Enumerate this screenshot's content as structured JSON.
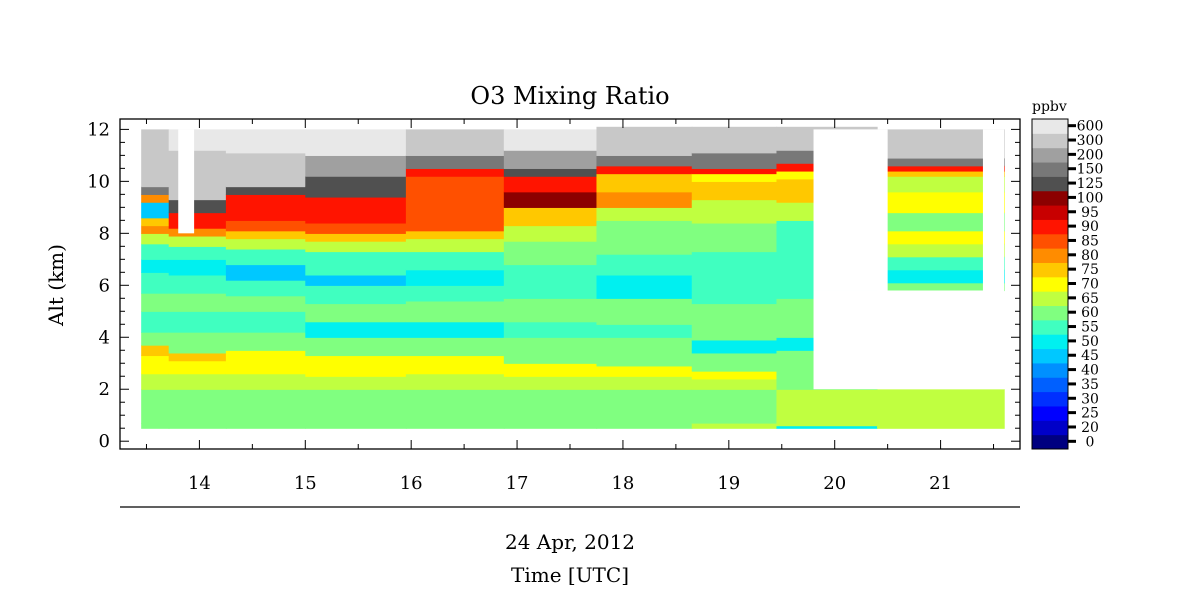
{
  "chart_data": {
    "type": "heatmap",
    "title": "O3 Mixing Ratio",
    "ylabel": "Alt (km)",
    "date_label": "24 Apr, 2012",
    "xlabel": "Time [UTC]",
    "xlim": [
      13.25,
      21.75
    ],
    "ylim": [
      -0.3,
      12.4
    ],
    "x_ticks": [
      14,
      15,
      16,
      17,
      18,
      19,
      20,
      21
    ],
    "y_ticks": [
      0,
      2,
      4,
      6,
      8,
      10,
      12
    ],
    "colorbar": {
      "unit": "ppbv",
      "levels": [
        0,
        20,
        25,
        30,
        35,
        40,
        45,
        50,
        55,
        60,
        65,
        70,
        75,
        80,
        85,
        90,
        95,
        100,
        125,
        150,
        200,
        300,
        600
      ],
      "colors": [
        "#000080",
        "#0000c8",
        "#0000ff",
        "#0030ff",
        "#0060ff",
        "#0090ff",
        "#00c8ff",
        "#00f0f0",
        "#40ffc0",
        "#80ff80",
        "#c0ff40",
        "#ffff00",
        "#ffc800",
        "#ff8c00",
        "#ff5000",
        "#ff1400",
        "#c80000",
        "#8c0000",
        "#505050",
        "#787878",
        "#a0a0a0",
        "#c8c8c8",
        "#e8e8e8"
      ]
    },
    "profiles": [
      {
        "time": 13.47,
        "levels": [
          [
            0.5,
            0.7,
            60
          ],
          [
            0.7,
            2.0,
            60
          ],
          [
            2.0,
            2.6,
            65
          ],
          [
            2.6,
            3.3,
            70
          ],
          [
            3.3,
            3.7,
            75
          ],
          [
            3.7,
            4.2,
            60
          ],
          [
            4.2,
            5.0,
            55
          ],
          [
            5.0,
            5.7,
            60
          ],
          [
            5.7,
            6.5,
            55
          ],
          [
            6.5,
            7.0,
            50
          ],
          [
            7.0,
            7.6,
            55
          ],
          [
            7.6,
            8.0,
            65
          ],
          [
            8.0,
            8.3,
            80
          ],
          [
            8.3,
            8.6,
            75
          ],
          [
            8.6,
            9.2,
            45
          ],
          [
            9.2,
            9.5,
            80
          ],
          [
            9.5,
            9.8,
            150
          ],
          [
            9.8,
            12.0,
            300
          ]
        ]
      },
      {
        "time": 13.95,
        "levels": [
          [
            0.5,
            2.0,
            60
          ],
          [
            2.0,
            2.6,
            65
          ],
          [
            2.6,
            3.1,
            70
          ],
          [
            3.1,
            3.4,
            75
          ],
          [
            3.4,
            4.2,
            60
          ],
          [
            4.2,
            5.0,
            55
          ],
          [
            5.0,
            5.7,
            60
          ],
          [
            5.7,
            6.4,
            55
          ],
          [
            6.4,
            7.0,
            50
          ],
          [
            7.0,
            7.5,
            55
          ],
          [
            7.5,
            7.9,
            65
          ],
          [
            7.9,
            8.2,
            80
          ],
          [
            8.2,
            8.8,
            90
          ],
          [
            8.8,
            9.3,
            125
          ],
          [
            9.3,
            11.2,
            300
          ],
          [
            11.2,
            12.0,
            600
          ]
        ]
      },
      {
        "time": 14.55,
        "levels": [
          [
            0.5,
            2.0,
            60
          ],
          [
            2.0,
            2.6,
            65
          ],
          [
            2.6,
            3.5,
            70
          ],
          [
            3.5,
            4.2,
            60
          ],
          [
            4.2,
            5.0,
            55
          ],
          [
            5.0,
            5.6,
            60
          ],
          [
            5.6,
            6.2,
            55
          ],
          [
            6.2,
            6.8,
            45
          ],
          [
            6.8,
            7.4,
            55
          ],
          [
            7.4,
            7.8,
            65
          ],
          [
            7.8,
            8.1,
            75
          ],
          [
            8.1,
            8.5,
            85
          ],
          [
            8.5,
            9.5,
            90
          ],
          [
            9.5,
            9.8,
            125
          ],
          [
            9.8,
            11.1,
            300
          ],
          [
            11.1,
            12.0,
            600
          ]
        ]
      },
      {
        "time": 15.45,
        "levels": [
          [
            0.5,
            2.0,
            60
          ],
          [
            2.0,
            2.5,
            65
          ],
          [
            2.5,
            3.3,
            70
          ],
          [
            3.3,
            4.0,
            60
          ],
          [
            4.0,
            4.6,
            50
          ],
          [
            4.6,
            5.3,
            60
          ],
          [
            5.3,
            6.0,
            55
          ],
          [
            6.0,
            6.4,
            45
          ],
          [
            6.4,
            7.3,
            55
          ],
          [
            7.3,
            7.7,
            65
          ],
          [
            7.7,
            8.0,
            75
          ],
          [
            8.0,
            8.4,
            85
          ],
          [
            8.4,
            9.4,
            90
          ],
          [
            9.4,
            9.8,
            125
          ],
          [
            9.8,
            10.2,
            125
          ],
          [
            10.2,
            11.0,
            200
          ],
          [
            11.0,
            12.0,
            600
          ]
        ]
      },
      {
        "time": 16.45,
        "levels": [
          [
            0.5,
            2.0,
            60
          ],
          [
            2.0,
            2.6,
            65
          ],
          [
            2.6,
            3.3,
            70
          ],
          [
            3.3,
            4.0,
            60
          ],
          [
            4.0,
            4.6,
            50
          ],
          [
            4.6,
            5.4,
            60
          ],
          [
            5.4,
            6.0,
            55
          ],
          [
            6.0,
            6.6,
            50
          ],
          [
            6.6,
            7.3,
            55
          ],
          [
            7.3,
            7.8,
            65
          ],
          [
            7.8,
            8.1,
            75
          ],
          [
            8.1,
            8.6,
            85
          ],
          [
            8.6,
            10.2,
            85
          ],
          [
            10.2,
            10.5,
            90
          ],
          [
            10.5,
            11.0,
            150
          ],
          [
            11.0,
            12.0,
            300
          ]
        ]
      },
      {
        "time": 17.3,
        "levels": [
          [
            0.5,
            2.0,
            60
          ],
          [
            2.0,
            2.5,
            65
          ],
          [
            2.5,
            3.0,
            70
          ],
          [
            3.0,
            4.0,
            60
          ],
          [
            4.0,
            4.6,
            55
          ],
          [
            4.6,
            5.5,
            60
          ],
          [
            5.5,
            6.0,
            55
          ],
          [
            6.0,
            6.8,
            55
          ],
          [
            6.8,
            7.7,
            60
          ],
          [
            7.7,
            8.3,
            65
          ],
          [
            8.3,
            9.0,
            75
          ],
          [
            9.0,
            9.6,
            100
          ],
          [
            9.6,
            10.2,
            90
          ],
          [
            10.2,
            10.5,
            125
          ],
          [
            10.5,
            11.2,
            200
          ],
          [
            11.2,
            12.0,
            600
          ]
        ]
      },
      {
        "time": 18.2,
        "levels": [
          [
            0.5,
            2.0,
            60
          ],
          [
            2.0,
            2.5,
            65
          ],
          [
            2.5,
            2.9,
            70
          ],
          [
            2.9,
            4.0,
            60
          ],
          [
            4.0,
            4.5,
            55
          ],
          [
            4.5,
            5.5,
            60
          ],
          [
            5.5,
            6.4,
            50
          ],
          [
            6.4,
            7.2,
            55
          ],
          [
            7.2,
            8.5,
            60
          ],
          [
            8.5,
            9.0,
            65
          ],
          [
            9.0,
            9.6,
            80
          ],
          [
            9.6,
            10.3,
            75
          ],
          [
            10.3,
            10.6,
            90
          ],
          [
            10.6,
            11.0,
            150
          ],
          [
            11.0,
            12.1,
            300
          ]
        ]
      },
      {
        "time": 19.1,
        "levels": [
          [
            0.5,
            0.7,
            65
          ],
          [
            0.7,
            2.0,
            60
          ],
          [
            2.0,
            2.4,
            65
          ],
          [
            2.4,
            2.7,
            70
          ],
          [
            2.7,
            3.4,
            60
          ],
          [
            3.4,
            3.9,
            50
          ],
          [
            3.9,
            5.3,
            60
          ],
          [
            5.3,
            6.3,
            55
          ],
          [
            6.3,
            7.3,
            55
          ],
          [
            7.3,
            8.4,
            60
          ],
          [
            8.4,
            9.3,
            65
          ],
          [
            9.3,
            10.0,
            75
          ],
          [
            10.0,
            10.3,
            70
          ],
          [
            10.3,
            10.5,
            90
          ],
          [
            10.5,
            11.1,
            150
          ],
          [
            11.1,
            12.1,
            300
          ]
        ]
      },
      {
        "time": 19.8,
        "levels": [
          [
            0.5,
            0.6,
            50
          ],
          [
            0.6,
            2.0,
            65
          ],
          [
            2.0,
            3.5,
            60
          ],
          [
            3.5,
            4.0,
            50
          ],
          [
            4.0,
            5.5,
            60
          ],
          [
            5.5,
            6.5,
            55
          ],
          [
            6.5,
            8.5,
            55
          ],
          [
            8.5,
            9.2,
            65
          ],
          [
            9.2,
            10.1,
            75
          ],
          [
            10.1,
            10.4,
            70
          ],
          [
            10.4,
            10.7,
            90
          ],
          [
            10.7,
            11.2,
            150
          ],
          [
            11.2,
            12.1,
            300
          ]
        ]
      },
      {
        "time": 21.0,
        "levels": [
          [
            0.5,
            2.0,
            65
          ],
          [
            5.8,
            6.1,
            60
          ],
          [
            6.1,
            6.6,
            50
          ],
          [
            6.6,
            7.1,
            55
          ],
          [
            7.1,
            7.6,
            65
          ],
          [
            7.6,
            8.1,
            70
          ],
          [
            8.1,
            8.8,
            60
          ],
          [
            8.8,
            9.6,
            70
          ],
          [
            9.6,
            10.2,
            65
          ],
          [
            10.2,
            10.4,
            75
          ],
          [
            10.4,
            10.6,
            90
          ],
          [
            10.6,
            10.9,
            150
          ],
          [
            10.9,
            12.0,
            300
          ]
        ]
      }
    ],
    "blank_regions": [
      {
        "x": [
          13.8,
          13.95
        ],
        "y": [
          8.0,
          12.0
        ]
      },
      {
        "x": [
          19.8,
          20.5
        ],
        "y": [
          5.8,
          12.0
        ]
      },
      {
        "x": [
          19.8,
          21.6
        ],
        "y": [
          2.0,
          5.8
        ]
      },
      {
        "x": [
          21.4,
          21.6
        ],
        "y": [
          5.8,
          12.0
        ]
      }
    ]
  }
}
